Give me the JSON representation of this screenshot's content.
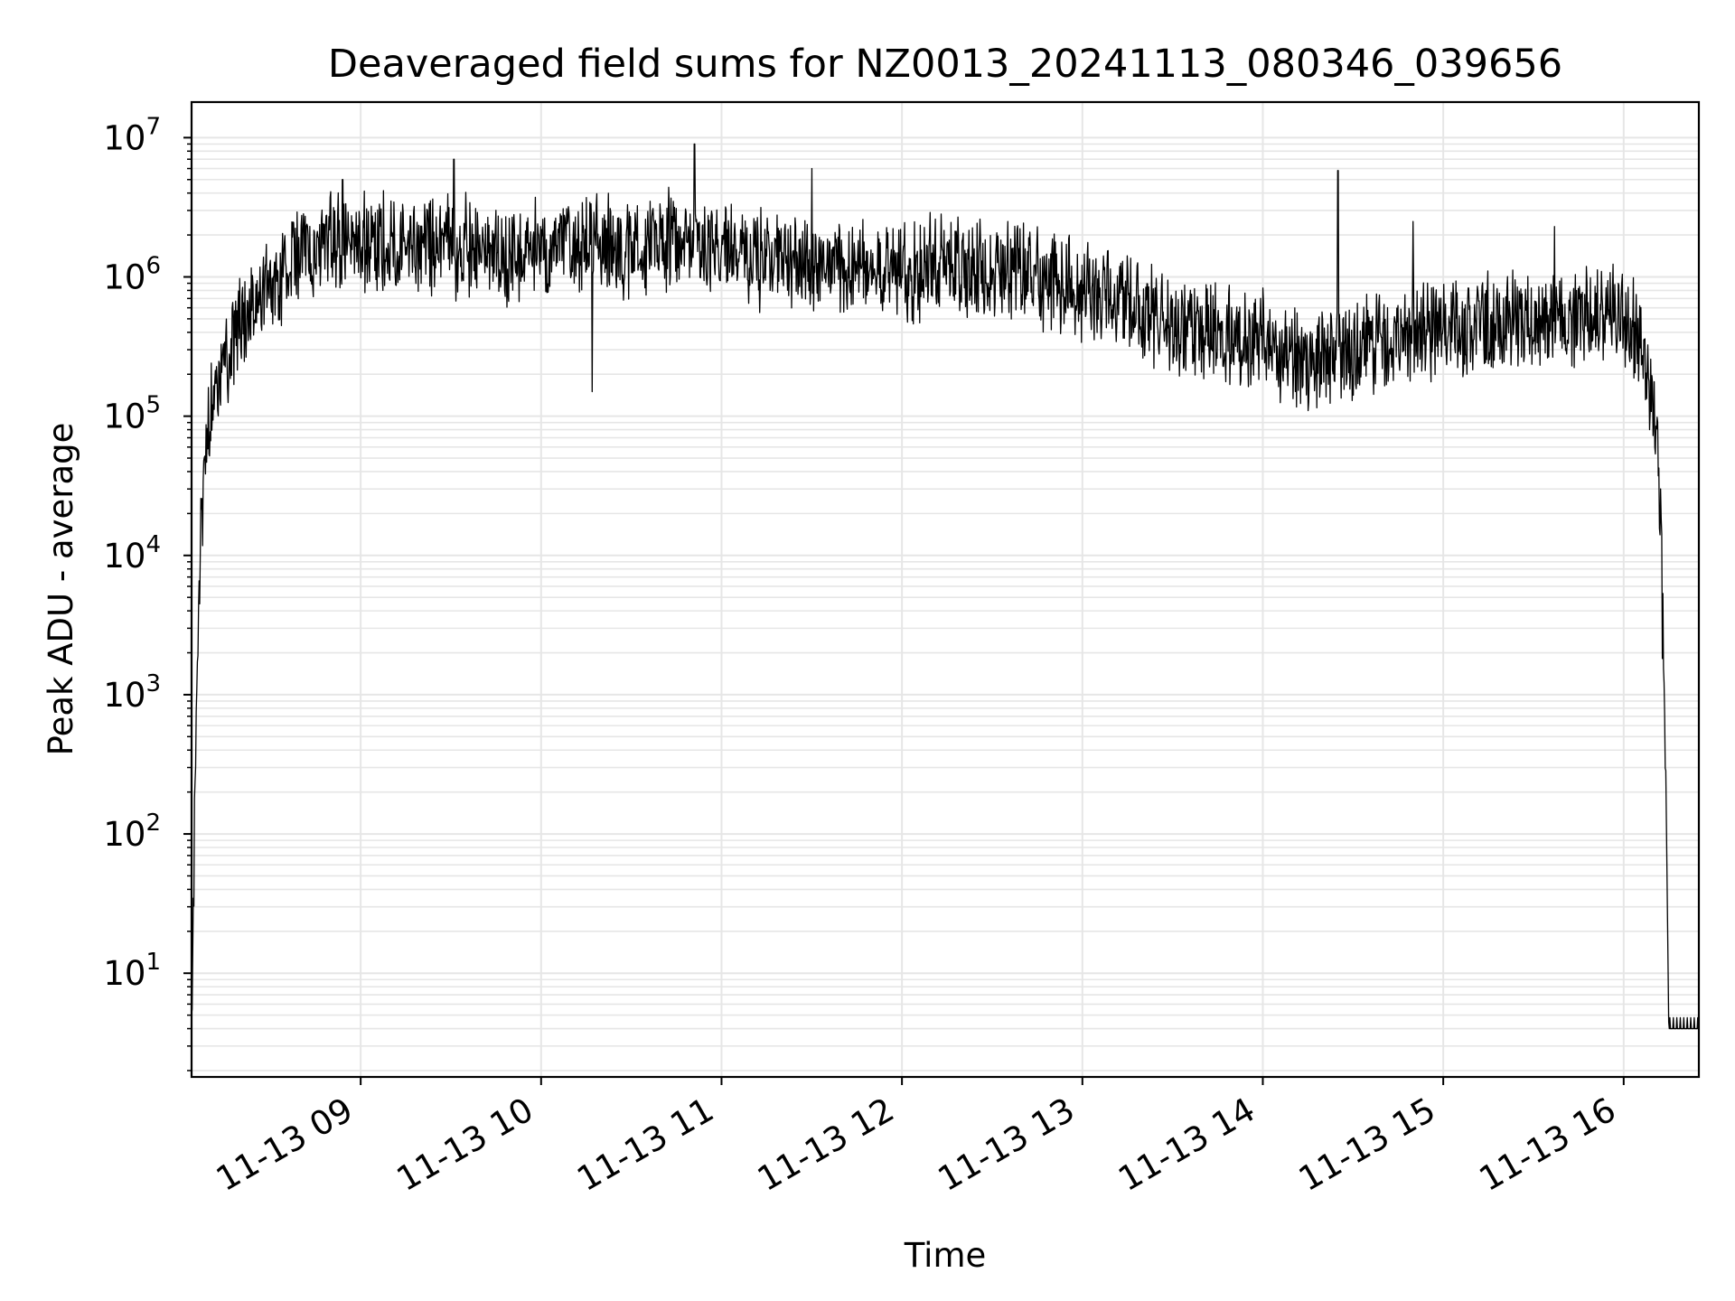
{
  "chart_data": {
    "type": "line",
    "title": "Deaveraged field sums for NZ0013_20241113_080346_039656",
    "xlabel": "Time",
    "ylabel": "Peak ADU - average",
    "yscale": "log",
    "xlim": [
      "2024-11-13 08:03:46",
      "2024-11-13 16:25:00"
    ],
    "ylim": [
      1.8,
      18000000
    ],
    "grid": true,
    "line_color": "#000000",
    "grid_color": "#e6e6e6",
    "x_ticks": [
      "11-13 09",
      "11-13 10",
      "11-13 11",
      "11-13 12",
      "11-13 13",
      "11-13 14",
      "11-13 15",
      "11-13 16"
    ],
    "y_ticks": [
      {
        "base": "10",
        "exp": "1"
      },
      {
        "base": "10",
        "exp": "2"
      },
      {
        "base": "10",
        "exp": "3"
      },
      {
        "base": "10",
        "exp": "4"
      },
      {
        "base": "10",
        "exp": "5"
      },
      {
        "base": "10",
        "exp": "6"
      },
      {
        "base": "10",
        "exp": "7"
      }
    ],
    "series": [
      {
        "points": [
          [
            "2024-11-13 08:03:46",
            4
          ],
          [
            "2024-11-13 08:04:30",
            60
          ],
          [
            "2024-11-13 08:05:30",
            1500
          ],
          [
            "2024-11-13 08:07:00",
            20000
          ],
          [
            "2024-11-13 08:09:00",
            60000
          ],
          [
            "2024-11-13 08:11:00",
            150000
          ],
          [
            "2024-11-13 08:14:00",
            250000
          ],
          [
            "2024-11-13 08:18:00",
            350000
          ],
          [
            "2024-11-13 08:22:00",
            550000
          ],
          [
            "2024-11-13 08:27:00",
            800000
          ],
          [
            "2024-11-13 08:33:00",
            1100000
          ],
          [
            "2024-11-13 08:40:00",
            1400000
          ],
          [
            "2024-11-13 08:50:00",
            1800000
          ],
          [
            "2024-11-13 09:00:00",
            1700000
          ],
          [
            "2024-11-13 09:15:00",
            1600000
          ],
          [
            "2024-11-13 09:30:00",
            1700000
          ],
          [
            "2024-11-13 09:45:00",
            1500000
          ],
          [
            "2024-11-13 10:00:00",
            1600000
          ],
          [
            "2024-11-13 10:15:00",
            1700000
          ],
          [
            "2024-11-13 10:30:00",
            1600000
          ],
          [
            "2024-11-13 10:45:00",
            1800000
          ],
          [
            "2024-11-13 11:00:00",
            1500000
          ],
          [
            "2024-11-13 11:15:00",
            1300000
          ],
          [
            "2024-11-13 11:30:00",
            1200000
          ],
          [
            "2024-11-13 11:45:00",
            1100000
          ],
          [
            "2024-11-13 12:00:00",
            1100000
          ],
          [
            "2024-11-13 12:15:00",
            1200000
          ],
          [
            "2024-11-13 12:30:00",
            1100000
          ],
          [
            "2024-11-13 12:45:00",
            1000000
          ],
          [
            "2024-11-13 13:00:00",
            800000
          ],
          [
            "2024-11-13 13:15:00",
            700000
          ],
          [
            "2024-11-13 13:30:00",
            450000
          ],
          [
            "2024-11-13 13:45:00",
            400000
          ],
          [
            "2024-11-13 14:00:00",
            350000
          ],
          [
            "2024-11-13 14:15:00",
            250000
          ],
          [
            "2024-11-13 14:30:00",
            300000
          ],
          [
            "2024-11-13 14:45:00",
            350000
          ],
          [
            "2024-11-13 15:00:00",
            400000
          ],
          [
            "2024-11-13 15:15:00",
            450000
          ],
          [
            "2024-11-13 15:30:00",
            500000
          ],
          [
            "2024-11-13 15:45:00",
            550000
          ],
          [
            "2024-11-13 16:00:00",
            550000
          ],
          [
            "2024-11-13 16:06:00",
            300000
          ],
          [
            "2024-11-13 16:10:00",
            100000
          ],
          [
            "2024-11-13 16:12:00",
            30000
          ],
          [
            "2024-11-13 16:14:00",
            300
          ],
          [
            "2024-11-13 16:15:00",
            4
          ],
          [
            "2024-11-13 16:25:00",
            4
          ]
        ],
        "spikes": [
          [
            "2024-11-13 08:54:00",
            5000000
          ],
          [
            "2024-11-13 09:31:00",
            7000000
          ],
          [
            "2024-11-13 10:17:00",
            150000
          ],
          [
            "2024-11-13 10:51:00",
            9000000
          ],
          [
            "2024-11-13 11:30:00",
            6000000
          ],
          [
            "2024-11-13 14:25:00",
            5800000
          ],
          [
            "2024-11-13 14:50:00",
            2500000
          ],
          [
            "2024-11-13 15:37:00",
            2300000
          ],
          [
            "2024-11-13 15:32:00",
            600000
          ]
        ]
      }
    ]
  }
}
